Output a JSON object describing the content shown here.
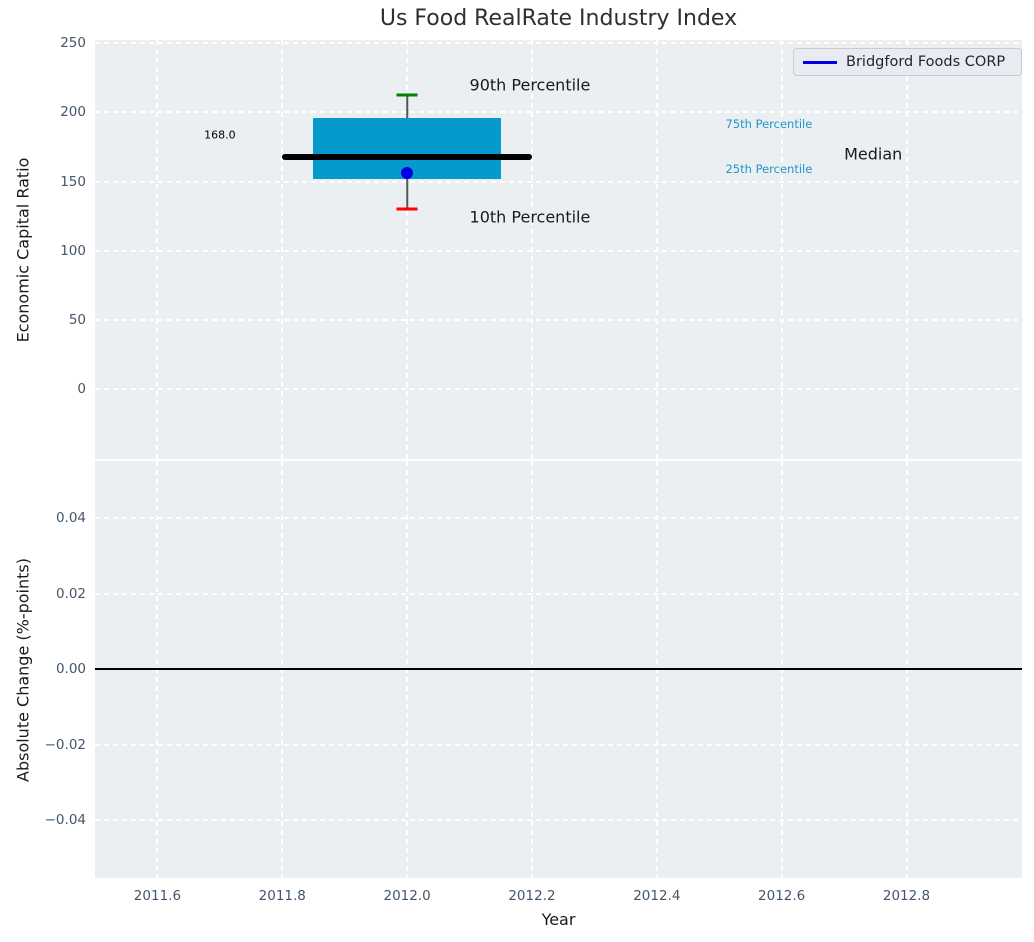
{
  "figure": {
    "title": "Us Food RealRate Industry Index",
    "legend": {
      "label": "Bridgford Foods CORP",
      "line_color": "#0000e0"
    }
  },
  "colors": {
    "plot_bg": "#eceff1",
    "grid": "#ffffff",
    "tick_label": "#44566b",
    "box_fill": "#0699cc",
    "median_line": "#000000",
    "whisker": "#555555",
    "cap_90": "#008000",
    "cap_10": "#ff0000",
    "company_marker": "#0000e0",
    "zero_line": "#000000",
    "percentile_label": "#2196c8"
  },
  "chart_data": [
    {
      "type": "box",
      "title": "Us Food RealRate Industry Index",
      "ylabel": "Economic Capital Ratio",
      "xlim": [
        2011.5,
        2012.985
      ],
      "ylim": [
        -51,
        252.5
      ],
      "y_ticks": [
        250,
        200,
        150,
        100,
        50,
        0
      ],
      "grid": true,
      "box": {
        "x": 2012.0,
        "p90": 213,
        "p75": 196,
        "median": 168.0,
        "p25": 152,
        "p10": 130,
        "box_halfwidth_years": 0.15,
        "median_halfwidth_years": 0.2
      },
      "company_point": {
        "name": "Bridgford Foods CORP",
        "x": 2012.0,
        "value": 156
      },
      "annotations": [
        {
          "text": "90th Percentile",
          "x": 2012.1,
          "y": 220,
          "ha": "left",
          "size": 16,
          "color": "#1a1a1a"
        },
        {
          "text": "10th Percentile",
          "x": 2012.1,
          "y": 124,
          "ha": "left",
          "size": 16,
          "color": "#1a1a1a"
        },
        {
          "text": "168.0",
          "x": 2011.7,
          "y": 184,
          "ha": "center",
          "size": 11,
          "color": "#000000"
        },
        {
          "text": "75th Percentile",
          "x": 2012.51,
          "y": 192,
          "ha": "left",
          "size": 11.5,
          "color": "#2196c8"
        },
        {
          "text": "25th Percentile",
          "x": 2012.51,
          "y": 159,
          "ha": "left",
          "size": 11.5,
          "color": "#2196c8"
        },
        {
          "text": "Median",
          "x": 2012.7,
          "y": 170,
          "ha": "left",
          "size": 16,
          "color": "#1a1a1a"
        }
      ]
    },
    {
      "type": "line",
      "ylabel": "Absolute Change (%-points)",
      "xlabel": "Year",
      "xlim": [
        2011.5,
        2012.985
      ],
      "ylim": [
        -0.0553,
        0.0551
      ],
      "y_ticks": [
        0.04,
        0.02,
        0.0,
        -0.02,
        -0.04
      ],
      "x_ticks": [
        2011.6,
        2011.8,
        2012.0,
        2012.2,
        2012.4,
        2012.6,
        2012.8
      ],
      "zero_line": 0.0,
      "grid": true
    }
  ]
}
